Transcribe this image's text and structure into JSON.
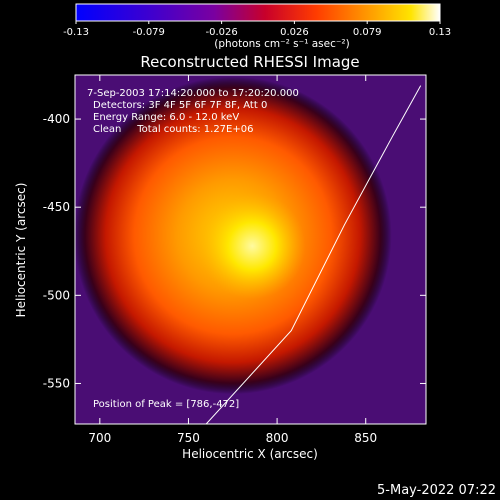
{
  "chart_data": {
    "type": "heatmap",
    "title": "Reconstructed RHESSI Image",
    "colorbar": {
      "colormap": "blue-purple-red-orange-yellow-white",
      "range": [
        -0.13,
        0.13
      ],
      "tick_labels": [
        "-0.13",
        "-0.079",
        "-0.026",
        "0.026",
        "0.079",
        "0.13"
      ],
      "units_label": "(photons cm⁻² s⁻¹ asec⁻²)"
    },
    "xlabel": "Heliocentric X (arcsec)",
    "ylabel": "Heliocentric Y (arcsec)",
    "xlim": [
      686,
      884
    ],
    "ylim": [
      -573,
      -375
    ],
    "xticks": [
      700,
      750,
      800,
      850
    ],
    "yticks": [
      -400,
      -450,
      -500,
      -550
    ],
    "annotations": [
      "7-Sep-2003 17:14:20.000 to 17:20:20.000",
      "Detectors: 3F 4F 5F 6F 7F 8F, Att 0",
      "Energy Range: 6.0 - 12.0 keV",
      "Clean     Total counts: 1.27E+06"
    ],
    "peak_label": "Position of Peak = [786,-472]",
    "peak": [
      786,
      -472
    ],
    "source": {
      "center": [
        775,
        -466
      ],
      "radius_arcsec": 80,
      "peak_value": 0.13,
      "background_value": -0.04
    },
    "limb_line": [
      [
        760,
        -573
      ],
      [
        808,
        -520
      ],
      [
        838,
        -460
      ],
      [
        865,
        -410
      ],
      [
        881,
        -381
      ]
    ]
  },
  "timestamp": "5-May-2022 07:22",
  "colors": {
    "background": "#000000",
    "text": "#ffffff",
    "limb": "#ffffff"
  }
}
